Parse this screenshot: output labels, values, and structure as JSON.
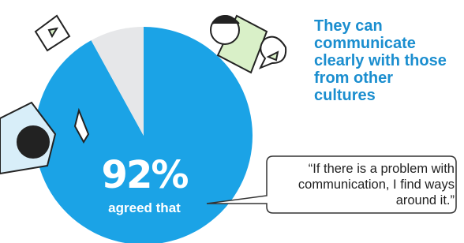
{
  "chart_data": {
    "type": "pie",
    "values": [
      92,
      8
    ],
    "value_labels": [
      "92%",
      null
    ],
    "colors": [
      "#1ba3e6",
      "#e6e7e9"
    ],
    "annotation": "agreed that",
    "headline": "They can communicate clearly with those from other cultures",
    "quote": "“If there is a problem with communication, I find ways around it.”"
  }
}
